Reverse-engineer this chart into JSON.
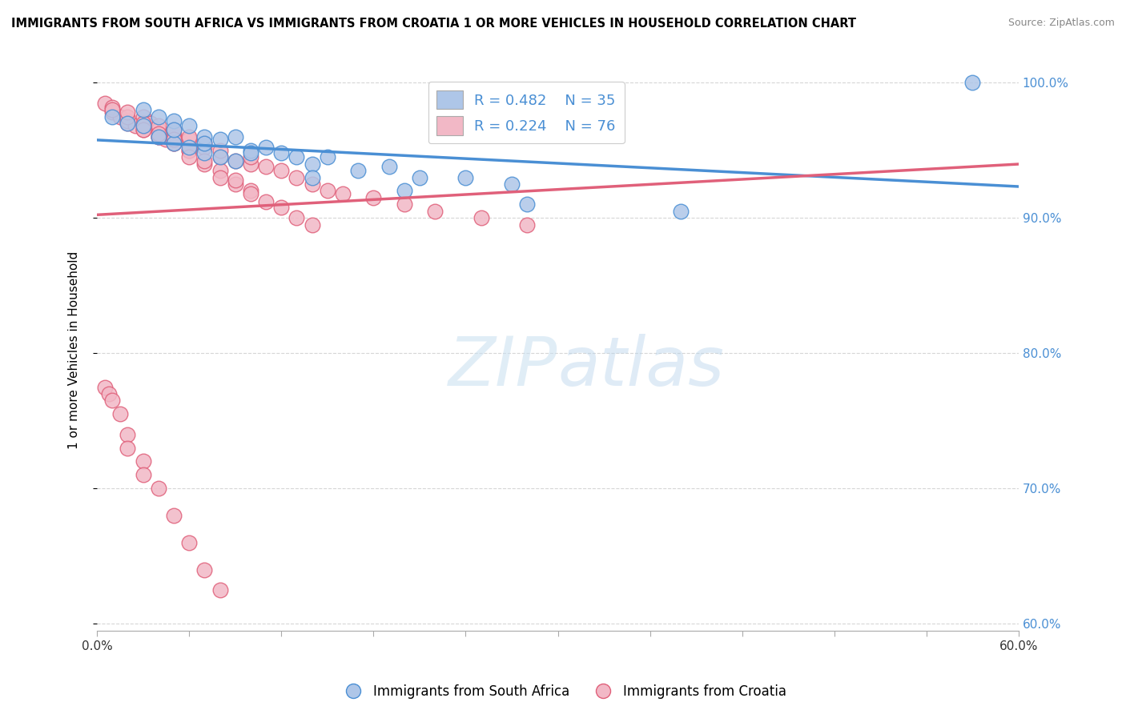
{
  "title": "IMMIGRANTS FROM SOUTH AFRICA VS IMMIGRANTS FROM CROATIA 1 OR MORE VEHICLES IN HOUSEHOLD CORRELATION CHART",
  "source": "Source: ZipAtlas.com",
  "ylabel": "1 or more Vehicles in Household",
  "legend_blue_label": "Immigrants from South Africa",
  "legend_pink_label": "Immigrants from Croatia",
  "R_blue": 0.482,
  "N_blue": 35,
  "R_pink": 0.224,
  "N_pink": 76,
  "blue_color": "#aec6e8",
  "blue_line_color": "#4a8fd4",
  "pink_color": "#f2b8c6",
  "pink_line_color": "#e0607a",
  "xmin": 0.0,
  "xmax": 0.06,
  "ymin": 0.595,
  "ymax": 1.01,
  "yticks": [
    0.6,
    0.7,
    0.8,
    0.9,
    1.0
  ],
  "ytick_labels": [
    "60.0%",
    "70.0%",
    "80.0%",
    "90.0%",
    "100.0%"
  ],
  "blue_scatter_x": [
    0.001,
    0.002,
    0.003,
    0.004,
    0.004,
    0.005,
    0.005,
    0.006,
    0.006,
    0.007,
    0.007,
    0.008,
    0.008,
    0.009,
    0.009,
    0.01,
    0.011,
    0.012,
    0.013,
    0.014,
    0.015,
    0.017,
    0.019,
    0.021,
    0.024,
    0.027,
    0.003,
    0.005,
    0.007,
    0.01,
    0.014,
    0.02,
    0.028,
    0.038,
    0.057
  ],
  "blue_scatter_y": [
    0.975,
    0.97,
    0.968,
    0.975,
    0.96,
    0.972,
    0.955,
    0.968,
    0.952,
    0.96,
    0.948,
    0.958,
    0.945,
    0.96,
    0.942,
    0.95,
    0.952,
    0.948,
    0.945,
    0.94,
    0.945,
    0.935,
    0.938,
    0.93,
    0.93,
    0.925,
    0.98,
    0.965,
    0.955,
    0.948,
    0.93,
    0.92,
    0.91,
    0.905,
    1.0
  ],
  "pink_scatter_x": [
    0.0005,
    0.001,
    0.001,
    0.0015,
    0.002,
    0.002,
    0.0025,
    0.003,
    0.003,
    0.003,
    0.0035,
    0.004,
    0.004,
    0.004,
    0.0045,
    0.005,
    0.005,
    0.005,
    0.005,
    0.006,
    0.006,
    0.006,
    0.007,
    0.007,
    0.008,
    0.008,
    0.009,
    0.01,
    0.01,
    0.011,
    0.012,
    0.013,
    0.014,
    0.015,
    0.016,
    0.018,
    0.02,
    0.022,
    0.025,
    0.028,
    0.001,
    0.002,
    0.002,
    0.003,
    0.003,
    0.004,
    0.004,
    0.005,
    0.005,
    0.006,
    0.006,
    0.007,
    0.007,
    0.008,
    0.008,
    0.009,
    0.009,
    0.01,
    0.01,
    0.011,
    0.012,
    0.013,
    0.014,
    0.0005,
    0.0008,
    0.001,
    0.0015,
    0.002,
    0.002,
    0.003,
    0.003,
    0.004,
    0.005,
    0.006,
    0.007,
    0.008
  ],
  "pink_scatter_y": [
    0.985,
    0.978,
    0.982,
    0.975,
    0.97,
    0.972,
    0.968,
    0.975,
    0.965,
    0.968,
    0.97,
    0.96,
    0.965,
    0.968,
    0.958,
    0.962,
    0.955,
    0.96,
    0.965,
    0.95,
    0.958,
    0.96,
    0.952,
    0.955,
    0.945,
    0.95,
    0.942,
    0.94,
    0.945,
    0.938,
    0.935,
    0.93,
    0.925,
    0.92,
    0.918,
    0.915,
    0.91,
    0.905,
    0.9,
    0.895,
    0.98,
    0.975,
    0.978,
    0.97,
    0.965,
    0.96,
    0.962,
    0.955,
    0.958,
    0.95,
    0.945,
    0.94,
    0.942,
    0.935,
    0.93,
    0.925,
    0.928,
    0.92,
    0.918,
    0.912,
    0.908,
    0.9,
    0.895,
    0.775,
    0.77,
    0.765,
    0.755,
    0.74,
    0.73,
    0.72,
    0.71,
    0.7,
    0.68,
    0.66,
    0.64,
    0.625
  ]
}
